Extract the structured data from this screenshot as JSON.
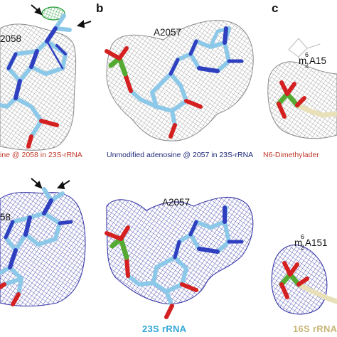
{
  "panels": {
    "b_letter": "b",
    "c_letter": "c"
  },
  "labels": {
    "top_left_residue": "2058",
    "top_mid_residue": "A2057",
    "top_right_base": "m",
    "top_right_sup": "6",
    "top_right_sub": "2",
    "top_right_rest": "A15",
    "bottom_left_residue": "58",
    "bottom_mid_residue": "A2057",
    "bottom_right_base": "m",
    "bottom_right_sup": "6",
    "bottom_right_sub": "2",
    "bottom_right_rest": "A151"
  },
  "captions": {
    "top_left": "ine @ 2058 in 23S-rRNA",
    "top_mid": "Unmodified adenosine @ 2057 in 23S-rRNA",
    "top_right": "N6-Dimethylader",
    "bottom_mid": "23S rRNA",
    "bottom_right": "16S rRNA"
  },
  "colors": {
    "caption_red": "#c0392b",
    "caption_blue": "#1f2a7a",
    "rrna23_blue": "#33a6d6",
    "rrna16_tan": "#c8b677",
    "carbon_lightblue": "#8cc8e8",
    "nitrogen": "#2f3fbf",
    "oxygen": "#d42020",
    "phosphorus": "#55aa33",
    "mesh_grey": "#8a8a8a",
    "mesh_blue": "#3a3aa8",
    "density_green": "#27a03a"
  }
}
